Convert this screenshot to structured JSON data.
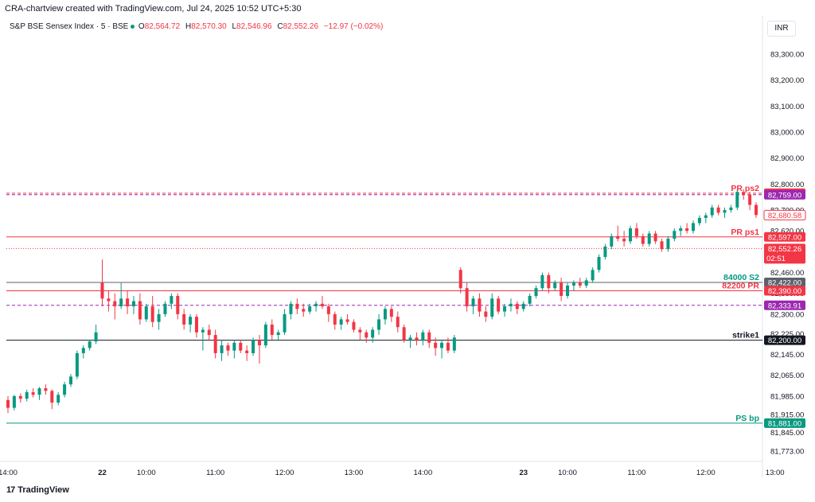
{
  "header": {
    "title": "CRA-chartview created with TradingView.com, Jul 24, 2025 10:52 UTC+5:30"
  },
  "legend": {
    "symbol": "S&P BSE Sensex Index · 5 · BSE",
    "open_label": "O",
    "open": "82,564.72",
    "high_label": "H",
    "high": "82,570.30",
    "low_label": "L",
    "low": "82,546.96",
    "close_label": "C",
    "close": "82,552.26",
    "change": "−12.97 (−0.02%)"
  },
  "currency_button": "INR",
  "brand": {
    "name": "TradingView",
    "icon": "tradingview-logo-icon"
  },
  "colors": {
    "up": "#089981",
    "down": "#f23645",
    "grid": "#f0f3fa",
    "axis_text": "#131722"
  },
  "chart_data": {
    "type": "candlestick",
    "y_axis": {
      "position": "right",
      "range": [
        81740,
        83370
      ],
      "ticks": [
        {
          "value": 83300,
          "label": "83,300.00"
        },
        {
          "value": 83200,
          "label": "83,200.00"
        },
        {
          "value": 83100,
          "label": "83,100.00"
        },
        {
          "value": 83000,
          "label": "83,000.00"
        },
        {
          "value": 82900,
          "label": "82,900.00"
        },
        {
          "value": 82800,
          "label": "82,800.00"
        },
        {
          "value": 82700,
          "label": "82,700.00"
        },
        {
          "value": 82620,
          "label": "82,620.00"
        },
        {
          "value": 82540,
          "label": "82,540.00"
        },
        {
          "value": 82460,
          "label": "82,460.00"
        },
        {
          "value": 82380,
          "label": "82,380.00"
        },
        {
          "value": 82300,
          "label": "82,300.00"
        },
        {
          "value": 82225,
          "label": "82,225.00"
        },
        {
          "value": 82145,
          "label": "82,145.00"
        },
        {
          "value": 82065,
          "label": "82,065.00"
        },
        {
          "value": 81985,
          "label": "81,985.00"
        },
        {
          "value": 81915,
          "label": "81,915.00"
        },
        {
          "value": 81845,
          "label": "81,845.00"
        },
        {
          "value": 81773,
          "label": "81,773.00"
        }
      ]
    },
    "x_axis": {
      "ticks": [
        {
          "label": "14:00",
          "index": 0,
          "bold": false
        },
        {
          "label": "22",
          "index": 15,
          "bold": true
        },
        {
          "label": "10:00",
          "index": 22,
          "bold": false
        },
        {
          "label": "11:00",
          "index": 33,
          "bold": false
        },
        {
          "label": "12:00",
          "index": 44,
          "bold": false
        },
        {
          "label": "13:00",
          "index": 55,
          "bold": false
        },
        {
          "label": "14:00",
          "index": 66,
          "bold": false
        },
        {
          "label": "23",
          "index": 82,
          "bold": true
        },
        {
          "label": "10:00",
          "index": 89,
          "bold": false
        },
        {
          "label": "11:00",
          "index": 100,
          "bold": false
        },
        {
          "label": "12:00",
          "index": 111,
          "bold": false
        },
        {
          "label": "13:00",
          "index": 122,
          "bold": false
        },
        {
          "label": "14:00",
          "index": 133,
          "bold": false
        }
      ]
    },
    "levels": [
      {
        "name": "PR ps2",
        "value": 82765.0,
        "label": "82,765.00",
        "color": "#f23645",
        "style": "dashed",
        "text": "PR ps2"
      },
      {
        "name": "ps2-ref",
        "value": 82759.0,
        "label": "82,759.00",
        "color": "#9c27b0",
        "style": "dashed",
        "text": ""
      },
      {
        "name": "PR ps1",
        "value": 82597.0,
        "label": "82,597.00",
        "color": "#f23645",
        "style": "solid",
        "text": "PR ps1"
      },
      {
        "name": "84000 S2",
        "value": 82422.0,
        "label": "82,422.00",
        "color": "#5d606b",
        "style": "solid",
        "text": "84000 S2",
        "text_color": "#089981"
      },
      {
        "name": "82200 PR",
        "value": 82390.0,
        "label": "82,390.00",
        "color": "#f23645",
        "style": "solid",
        "text": "82200 PR"
      },
      {
        "name": "ps-ref",
        "value": 82333.91,
        "label": "82,333.91",
        "color": "#9c27b0",
        "style": "dashed",
        "text": ""
      },
      {
        "name": "strike1",
        "value": 82200.0,
        "label": "82,200.00",
        "color": "#131722",
        "style": "solid",
        "text": "strike1"
      },
      {
        "name": "PS bp",
        "value": 81881.0,
        "label": "81,881.00",
        "color": "#089981",
        "style": "solid",
        "text": "PS bp"
      }
    ],
    "price_tags": [
      {
        "value": 82680.58,
        "label": "82,680.58",
        "style": "outline",
        "color": "#f23645"
      },
      {
        "value": 82552.26,
        "label": "82,552.26",
        "sub": "02:51",
        "style": "filled",
        "color": "#f23645"
      }
    ],
    "candles": [
      [
        81970,
        81985,
        81920,
        81940
      ],
      [
        81940,
        81990,
        81930,
        81985
      ],
      [
        81985,
        81995,
        81960,
        81975
      ],
      [
        81975,
        82010,
        81965,
        82000
      ],
      [
        82000,
        82015,
        81980,
        81990
      ],
      [
        81990,
        82020,
        81970,
        82015
      ],
      [
        82015,
        82030,
        81990,
        82005
      ],
      [
        82005,
        82010,
        81935,
        81960
      ],
      [
        81960,
        82000,
        81950,
        81990
      ],
      [
        81990,
        82040,
        81980,
        82030
      ],
      [
        82030,
        82070,
        82020,
        82060
      ],
      [
        82060,
        82160,
        82050,
        82150
      ],
      [
        82150,
        82180,
        82130,
        82170
      ],
      [
        82170,
        82200,
        82160,
        82195
      ],
      [
        82195,
        82260,
        82185,
        82230
      ],
      [
        82420,
        82510,
        82330,
        82360
      ],
      [
        82360,
        82390,
        82310,
        82350
      ],
      [
        82350,
        82380,
        82280,
        82330
      ],
      [
        82330,
        82420,
        82320,
        82360
      ],
      [
        82360,
        82390,
        82300,
        82330
      ],
      [
        82330,
        82370,
        82300,
        82350
      ],
      [
        82350,
        82380,
        82260,
        82280
      ],
      [
        82280,
        82340,
        82270,
        82330
      ],
      [
        82330,
        82370,
        82250,
        82270
      ],
      [
        82270,
        82320,
        82240,
        82300
      ],
      [
        82300,
        82350,
        82290,
        82340
      ],
      [
        82340,
        82380,
        82320,
        82370
      ],
      [
        82370,
        82380,
        82280,
        82300
      ],
      [
        82300,
        82320,
        82240,
        82260
      ],
      [
        82260,
        82300,
        82230,
        82290
      ],
      [
        82290,
        82300,
        82210,
        82230
      ],
      [
        82230,
        82250,
        82160,
        82240
      ],
      [
        82240,
        82260,
        82200,
        82220
      ],
      [
        82220,
        82240,
        82130,
        82150
      ],
      [
        82150,
        82200,
        82120,
        82180
      ],
      [
        82180,
        82190,
        82140,
        82160
      ],
      [
        82160,
        82200,
        82130,
        82190
      ],
      [
        82190,
        82200,
        82150,
        82160
      ],
      [
        82160,
        82180,
        82120,
        82150
      ],
      [
        82150,
        82210,
        82140,
        82200
      ],
      [
        82200,
        82220,
        82110,
        82180
      ],
      [
        82180,
        82270,
        82170,
        82260
      ],
      [
        82260,
        82280,
        82200,
        82220
      ],
      [
        82220,
        82240,
        82200,
        82230
      ],
      [
        82230,
        82320,
        82220,
        82300
      ],
      [
        82300,
        82350,
        82280,
        82340
      ],
      [
        82340,
        82360,
        82300,
        82320
      ],
      [
        82320,
        82340,
        82290,
        82310
      ],
      [
        82310,
        82340,
        82300,
        82330
      ],
      [
        82330,
        82350,
        82310,
        82340
      ],
      [
        82340,
        82370,
        82320,
        82330
      ],
      [
        82330,
        82340,
        82270,
        82300
      ],
      [
        82300,
        82310,
        82240,
        82260
      ],
      [
        82260,
        82290,
        82240,
        82280
      ],
      [
        82280,
        82300,
        82260,
        82270
      ],
      [
        82270,
        82280,
        82230,
        82240
      ],
      [
        82240,
        82250,
        82200,
        82230
      ],
      [
        82230,
        82240,
        82190,
        82210
      ],
      [
        82210,
        82250,
        82190,
        82240
      ],
      [
        82240,
        82300,
        82220,
        82280
      ],
      [
        82280,
        82330,
        82260,
        82320
      ],
      [
        82320,
        82330,
        82270,
        82290
      ],
      [
        82290,
        82310,
        82230,
        82250
      ],
      [
        82250,
        82260,
        82190,
        82200
      ],
      [
        82200,
        82220,
        82170,
        82210
      ],
      [
        82210,
        82230,
        82180,
        82200
      ],
      [
        82200,
        82240,
        82180,
        82230
      ],
      [
        82230,
        82240,
        82170,
        82190
      ],
      [
        82190,
        82210,
        82140,
        82170
      ],
      [
        82170,
        82200,
        82130,
        82190
      ],
      [
        82190,
        82210,
        82150,
        82160
      ],
      [
        82160,
        82220,
        82150,
        82210
      ],
      [
        82470,
        82480,
        82380,
        82400
      ],
      [
        82400,
        82420,
        82310,
        82330
      ],
      [
        82330,
        82370,
        82300,
        82360
      ],
      [
        82360,
        82380,
        82290,
        82310
      ],
      [
        82310,
        82330,
        82270,
        82290
      ],
      [
        82290,
        82380,
        82280,
        82360
      ],
      [
        82360,
        82370,
        82300,
        82310
      ],
      [
        82310,
        82340,
        82290,
        82330
      ],
      [
        82330,
        82360,
        82310,
        82340
      ],
      [
        82340,
        82350,
        82300,
        82320
      ],
      [
        82320,
        82350,
        82310,
        82340
      ],
      [
        82340,
        82380,
        82330,
        82370
      ],
      [
        82370,
        82410,
        82360,
        82400
      ],
      [
        82400,
        82460,
        82390,
        82450
      ],
      [
        82450,
        82460,
        82380,
        82400
      ],
      [
        82400,
        82430,
        82390,
        82420
      ],
      [
        82420,
        82440,
        82350,
        82370
      ],
      [
        82370,
        82420,
        82360,
        82410
      ],
      [
        82410,
        82430,
        82390,
        82420
      ],
      [
        82420,
        82440,
        82400,
        82410
      ],
      [
        82410,
        82440,
        82400,
        82430
      ],
      [
        82430,
        82480,
        82420,
        82470
      ],
      [
        82470,
        82530,
        82460,
        82520
      ],
      [
        82520,
        82570,
        82510,
        82560
      ],
      [
        82560,
        82610,
        82550,
        82600
      ],
      [
        82600,
        82640,
        82580,
        82590
      ],
      [
        82590,
        82620,
        82560,
        82580
      ],
      [
        82580,
        82640,
        82570,
        82630
      ],
      [
        82630,
        82650,
        82590,
        82600
      ],
      [
        82600,
        82610,
        82560,
        82570
      ],
      [
        82570,
        82620,
        82560,
        82610
      ],
      [
        82610,
        82620,
        82570,
        82580
      ],
      [
        82580,
        82590,
        82540,
        82550
      ],
      [
        82550,
        82600,
        82540,
        82590
      ],
      [
        82590,
        82630,
        82580,
        82620
      ],
      [
        82620,
        82640,
        82600,
        82630
      ],
      [
        82630,
        82650,
        82610,
        82620
      ],
      [
        82620,
        82660,
        82610,
        82650
      ],
      [
        82650,
        82680,
        82640,
        82670
      ],
      [
        82670,
        82690,
        82650,
        82680
      ],
      [
        82680,
        82720,
        82670,
        82710
      ],
      [
        82710,
        82720,
        82680,
        82690
      ],
      [
        82690,
        82710,
        82670,
        82700
      ],
      [
        82700,
        82720,
        82690,
        82710
      ],
      [
        82710,
        82780,
        82700,
        82770
      ],
      [
        82770,
        82780,
        82740,
        82760
      ],
      [
        82760,
        82770,
        82700,
        82720
      ],
      [
        82720,
        82730,
        82670,
        82681
      ]
    ]
  }
}
